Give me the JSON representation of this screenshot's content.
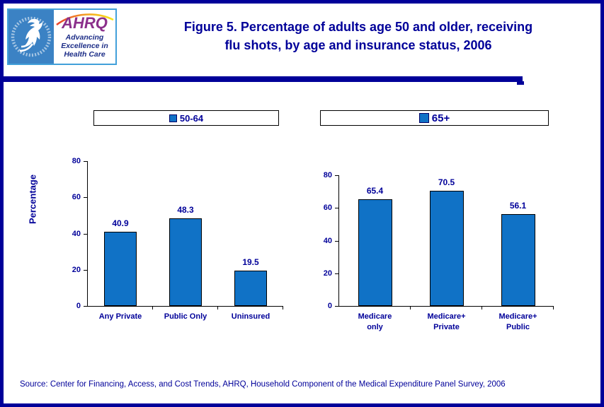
{
  "header": {
    "title_line1": "Figure 5. Percentage of adults age 50 and older, receiving",
    "title_line2": "flu shots, by age and insurance status, 2006",
    "logo": {
      "acronym": "AHRQ",
      "tagline": "Advancing\nExcellence in\nHealth Care"
    }
  },
  "legends": [
    {
      "label": "50-64",
      "marker_color": "#1072C6"
    },
    {
      "label": "65+",
      "marker_color": "#1072C6"
    }
  ],
  "chart_data": [
    {
      "type": "bar",
      "legend": "50-64",
      "ylabel": "Percentage",
      "ylim": [
        0,
        80
      ],
      "yticks": [
        0,
        20,
        40,
        60,
        80
      ],
      "grid": false,
      "categories": [
        "Any Private",
        "Public Only",
        "Uninsured"
      ],
      "values": [
        40.9,
        48.3,
        19.5
      ],
      "bar_color": "#1072C6"
    },
    {
      "type": "bar",
      "legend": "65+",
      "ylabel": "",
      "ylim": [
        0,
        80
      ],
      "yticks": [
        0,
        20,
        40,
        60,
        80
      ],
      "grid": false,
      "categories": [
        "Medicare\nonly",
        "Medicare+\nPrivate",
        "Medicare+\nPublic"
      ],
      "values": [
        65.4,
        70.5,
        56.1
      ],
      "bar_color": "#1072C6"
    }
  ],
  "footer": {
    "source": "Source: Center for Financing, Access, and Cost Trends, AHRQ, Household Component of the Medical Expenditure Panel Survey, 2006"
  },
  "colors": {
    "navy": "#000099",
    "bar_blue": "#1072C6",
    "hhs_blue": "#3B82C4",
    "ahrq_purple": "#8B2F8B"
  }
}
